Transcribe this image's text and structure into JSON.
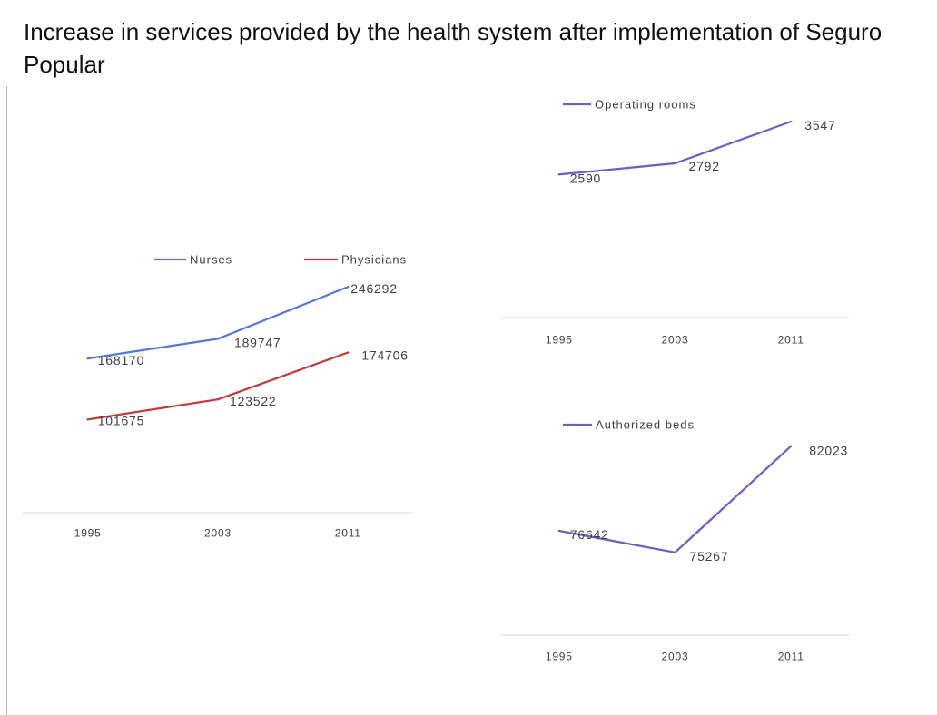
{
  "page_title": "Increase in services provided by the health system after implementation of Seguro Popular",
  "chart_data": [
    {
      "type": "line",
      "categories": [
        "1995",
        "2003",
        "2011"
      ],
      "series": [
        {
          "name": "Nurses",
          "values": [
            168170,
            189747,
            246292
          ],
          "color": "#5677d6"
        },
        {
          "name": "Physicians",
          "values": [
            101675,
            123522,
            174706
          ],
          "color": "#c3393a"
        }
      ],
      "ylim": [
        0,
        300000
      ],
      "grid": false,
      "legend": "top",
      "data_labels": true
    },
    {
      "type": "line",
      "categories": [
        "1995",
        "2003",
        "2011"
      ],
      "series": [
        {
          "name": "Operating rooms",
          "values": [
            2590,
            2792,
            3547
          ],
          "color": "#6b5fc8"
        }
      ],
      "ylim": [
        0,
        4000
      ],
      "grid": false,
      "legend": "top",
      "data_labels": true
    },
    {
      "type": "line",
      "categories": [
        "1995",
        "2003",
        "2011"
      ],
      "series": [
        {
          "name": "Authorized beds",
          "values": [
            76642,
            75267,
            82023
          ],
          "color": "#6b5fc8"
        }
      ],
      "ylim": [
        70000,
        84000
      ],
      "grid": false,
      "legend": "top",
      "data_labels": true
    }
  ]
}
